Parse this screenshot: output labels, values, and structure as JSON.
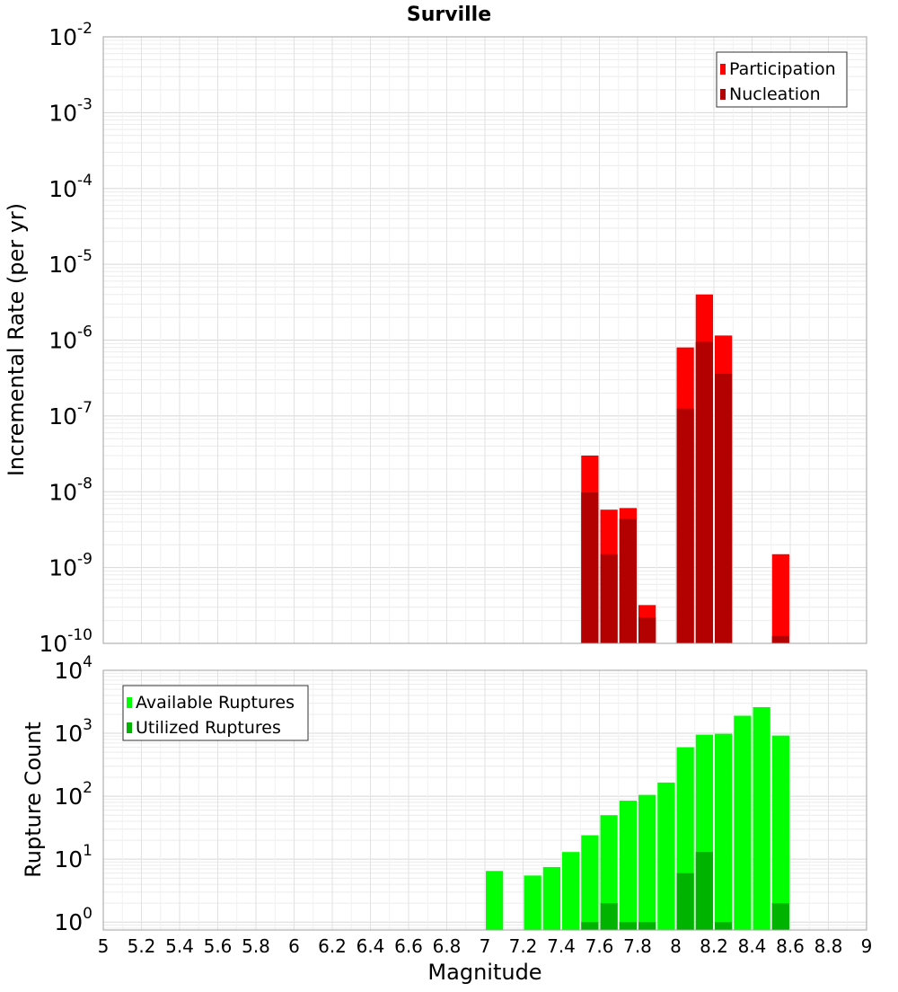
{
  "chart_data": [
    {
      "type": "bar",
      "title": "Surville",
      "xlabel": "",
      "ylabel": "Incremental Rate (per yr)",
      "yscale": "log",
      "ylim": [
        1e-10,
        0.01
      ],
      "xlim": [
        5,
        9
      ],
      "y_tick_exponents": [
        -2,
        -3,
        -4,
        -5,
        -6,
        -7,
        -8,
        -9,
        -10
      ],
      "legend": {
        "position": "top-right"
      },
      "grid": true,
      "bin_width": 0.1,
      "series": [
        {
          "name": "Participation",
          "color": "#ff0000",
          "points": [
            {
              "x": 7.55,
              "y": 3e-08
            },
            {
              "x": 7.65,
              "y": 5.8e-09
            },
            {
              "x": 7.75,
              "y": 6.1e-09
            },
            {
              "x": 7.85,
              "y": 3.2e-10
            },
            {
              "x": 8.05,
              "y": 8e-07
            },
            {
              "x": 8.15,
              "y": 4e-06
            },
            {
              "x": 8.25,
              "y": 1.15e-06
            },
            {
              "x": 8.55,
              "y": 1.5e-09
            }
          ]
        },
        {
          "name": "Nucleation",
          "color": "#b30000",
          "points": [
            {
              "x": 7.55,
              "y": 9.8e-09
            },
            {
              "x": 7.65,
              "y": 1.5e-09
            },
            {
              "x": 7.75,
              "y": 4.4e-09
            },
            {
              "x": 7.85,
              "y": 2.2e-10
            },
            {
              "x": 8.05,
              "y": 1.25e-07
            },
            {
              "x": 8.15,
              "y": 9.5e-07
            },
            {
              "x": 8.25,
              "y": 3.6e-07
            },
            {
              "x": 8.55,
              "y": 1.25e-10
            }
          ]
        }
      ]
    },
    {
      "type": "bar",
      "title": "",
      "xlabel": "Magnitude",
      "ylabel": "Rupture Count",
      "yscale": "log",
      "ylim": [
        0.75,
        10000
      ],
      "xlim": [
        5,
        9
      ],
      "y_tick_exponents": [
        4,
        3,
        2,
        1,
        0
      ],
      "x_ticks": [
        "5",
        "5.2",
        "5.4",
        "5.6",
        "5.8",
        "6",
        "6.2",
        "6.4",
        "6.6",
        "6.8",
        "7",
        "7.2",
        "7.4",
        "7.6",
        "7.8",
        "8",
        "8.2",
        "8.4",
        "8.6",
        "8.8",
        "9"
      ],
      "legend": {
        "position": "top-left"
      },
      "grid": true,
      "bin_width": 0.1,
      "series": [
        {
          "name": "Available Ruptures",
          "color": "#00ff00",
          "points": [
            {
              "x": 7.05,
              "y": 6.5
            },
            {
              "x": 7.25,
              "y": 5.5
            },
            {
              "x": 7.35,
              "y": 7.5
            },
            {
              "x": 7.45,
              "y": 13
            },
            {
              "x": 7.55,
              "y": 24
            },
            {
              "x": 7.65,
              "y": 50
            },
            {
              "x": 7.75,
              "y": 85
            },
            {
              "x": 7.85,
              "y": 105
            },
            {
              "x": 7.95,
              "y": 165
            },
            {
              "x": 8.05,
              "y": 600
            },
            {
              "x": 8.15,
              "y": 950
            },
            {
              "x": 8.25,
              "y": 980
            },
            {
              "x": 8.35,
              "y": 1900
            },
            {
              "x": 8.45,
              "y": 2600
            },
            {
              "x": 8.55,
              "y": 920
            }
          ]
        },
        {
          "name": "Utilized Ruptures",
          "color": "#00b300",
          "points": [
            {
              "x": 7.55,
              "y": 1
            },
            {
              "x": 7.65,
              "y": 2
            },
            {
              "x": 7.75,
              "y": 1
            },
            {
              "x": 7.85,
              "y": 1
            },
            {
              "x": 8.05,
              "y": 6
            },
            {
              "x": 8.15,
              "y": 13
            },
            {
              "x": 8.25,
              "y": 1
            },
            {
              "x": 8.55,
              "y": 2
            }
          ]
        }
      ]
    }
  ]
}
